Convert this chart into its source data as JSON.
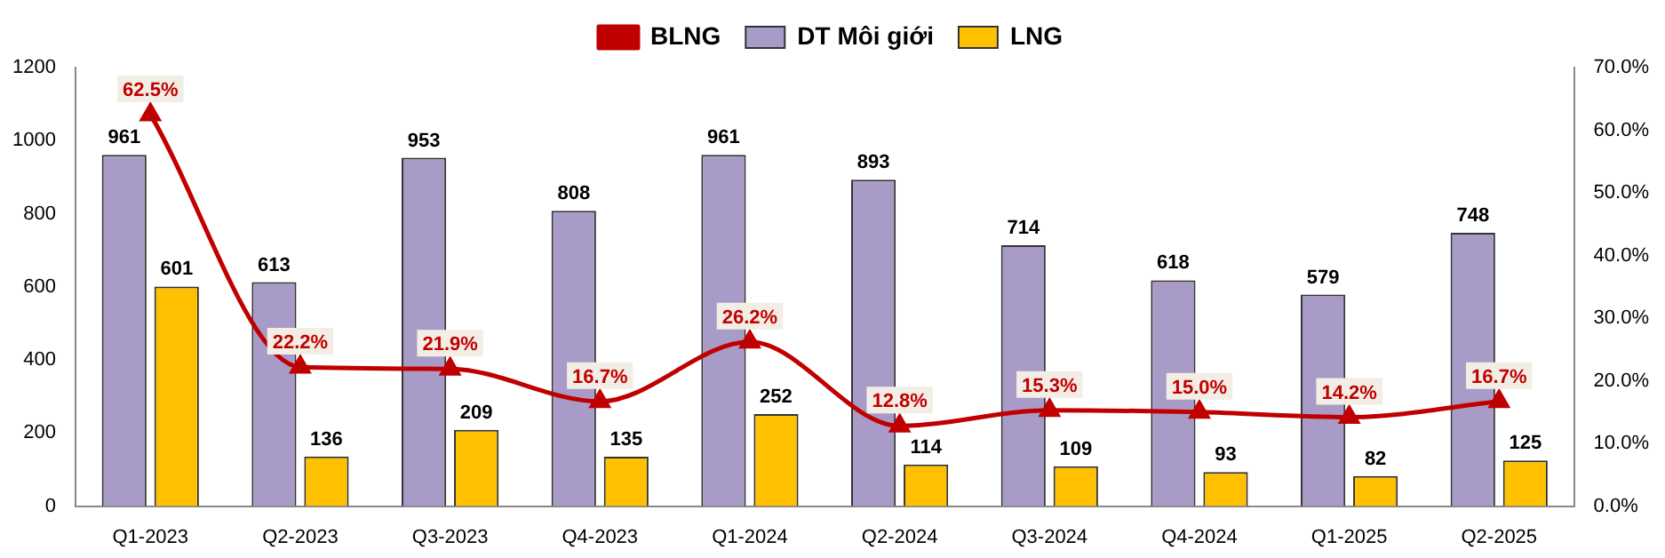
{
  "chart_data": {
    "type": "bar",
    "categories": [
      "Q1-2023",
      "Q2-2023",
      "Q3-2023",
      "Q4-2023",
      "Q1-2024",
      "Q2-2024",
      "Q3-2024",
      "Q4-2024",
      "Q1-2025",
      "Q2-2025"
    ],
    "series": [
      {
        "name": "DT Môi giới",
        "color": "#a99bc7",
        "values": [
          961,
          613,
          953,
          808,
          961,
          893,
          714,
          618,
          579,
          748
        ],
        "value_labels": [
          "961",
          "613",
          "953",
          "808",
          "961",
          "893",
          "714",
          "618",
          "579",
          "748"
        ]
      },
      {
        "name": "LNG",
        "color": "#ffc000",
        "values": [
          601,
          136,
          209,
          135,
          252,
          114,
          109,
          93,
          82,
          125
        ],
        "value_labels": [
          "601",
          "136",
          "209",
          "135",
          "252",
          "114",
          "109",
          "93",
          "82",
          "125"
        ]
      },
      {
        "name": "BLNG",
        "type": "line",
        "axis": "y2",
        "color": "#c00000",
        "marker": "triangle",
        "values": [
          62.5,
          22.2,
          21.9,
          16.7,
          26.2,
          12.8,
          15.3,
          15.0,
          14.2,
          16.7
        ],
        "value_labels": [
          "62.5%",
          "22.2%",
          "21.9%",
          "16.7%",
          "26.2%",
          "12.8%",
          "15.3%",
          "15.0%",
          "14.2%",
          "16.7%"
        ]
      }
    ],
    "ylim": [
      0,
      1200
    ],
    "yticks": [
      0,
      200,
      400,
      600,
      800,
      1000,
      1200
    ],
    "y2lim": [
      0,
      70
    ],
    "y2ticks": [
      {
        "value": 0,
        "label": "0.0%"
      },
      {
        "value": 10,
        "label": "10.0%"
      },
      {
        "value": 20,
        "label": "20.0%"
      },
      {
        "value": 30,
        "label": "30.0%"
      },
      {
        "value": 40,
        "label": "40.0%"
      },
      {
        "value": 50,
        "label": "50.0%"
      },
      {
        "value": 60,
        "label": "60.0%"
      },
      {
        "value": 70,
        "label": "70.0%"
      }
    ],
    "legend": "top",
    "grid": false
  }
}
